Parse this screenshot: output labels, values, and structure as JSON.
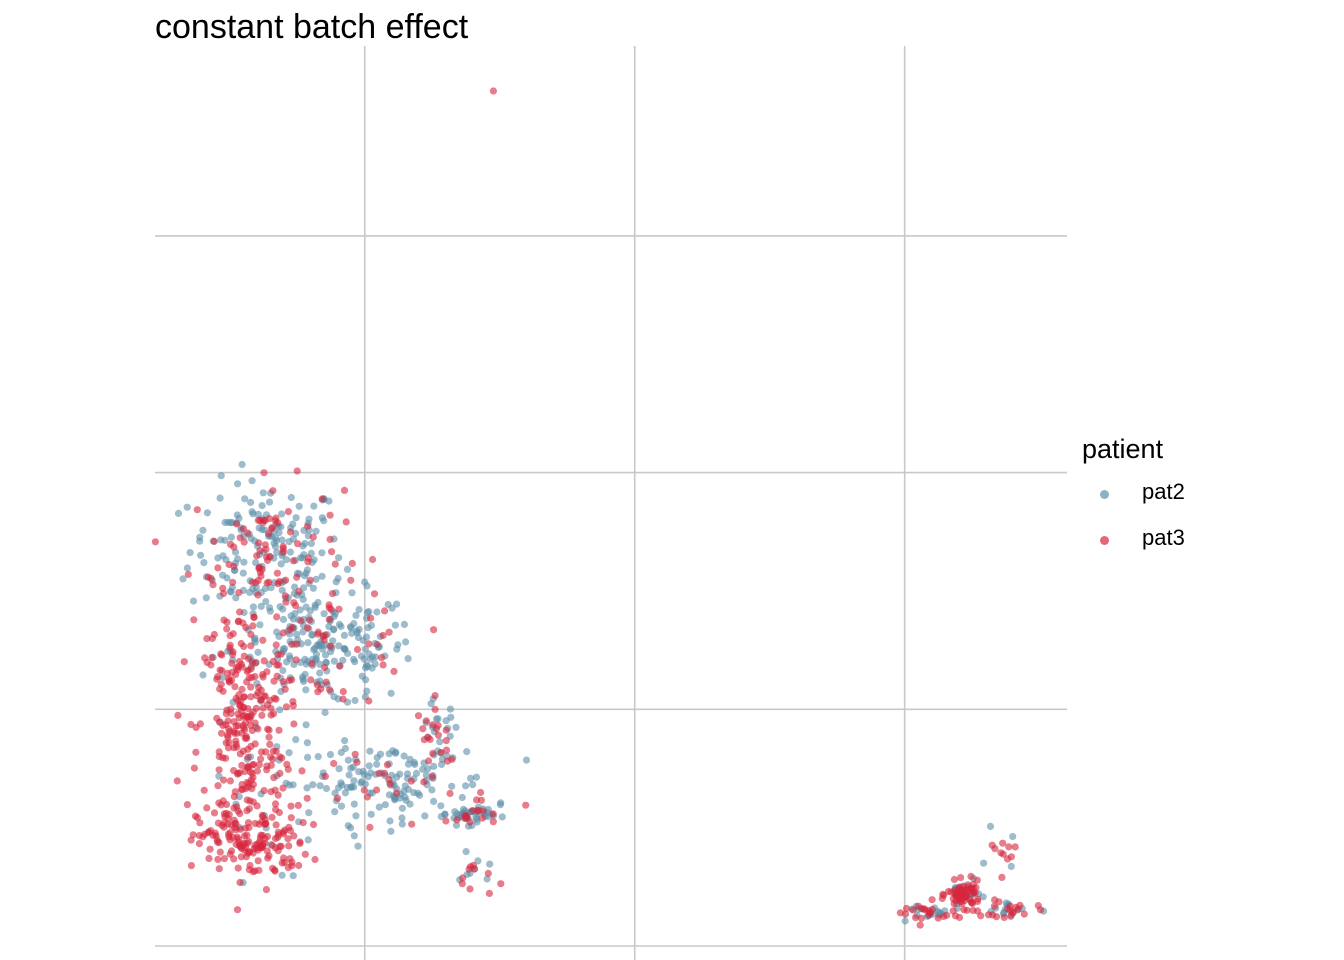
{
  "chart_data": {
    "type": "scatter",
    "title": "constant batch effect",
    "xlabel": "",
    "ylabel": "",
    "xlim": [
      0,
      1000
    ],
    "ylim": [
      0,
      1000
    ],
    "grid": true,
    "tick_labels_shown": false,
    "legend": {
      "title": "patient",
      "placement": "right"
    },
    "series": [
      {
        "name": "pat2",
        "color": "#5E8FA8",
        "points": []
      },
      {
        "name": "pat3",
        "color": "#D7263D",
        "points": []
      }
    ],
    "clusters": [
      {
        "id": "outlier",
        "x": 371,
        "y": 950,
        "sx": 0,
        "sy": 0,
        "n2": 0,
        "n3": 1
      },
      {
        "id": "main-top",
        "x": 122,
        "y": 440,
        "sx": 42,
        "sy": 38,
        "n2": 160,
        "n3": 90
      },
      {
        "id": "main-mid",
        "x": 185,
        "y": 330,
        "sx": 50,
        "sy": 32,
        "n2": 200,
        "n3": 60
      },
      {
        "id": "main-left",
        "x": 95,
        "y": 240,
        "sx": 24,
        "sy": 70,
        "n2": 10,
        "n3": 260
      },
      {
        "id": "main-bottom-left",
        "x": 107,
        "y": 115,
        "sx": 30,
        "sy": 20,
        "n2": 5,
        "n3": 140
      },
      {
        "id": "main-arm",
        "x": 250,
        "y": 180,
        "sx": 60,
        "sy": 22,
        "n2": 140,
        "n3": 30
      },
      {
        "id": "main-arm-tip",
        "x": 310,
        "y": 235,
        "sx": 12,
        "sy": 18,
        "n2": 20,
        "n3": 20
      },
      {
        "id": "small-1",
        "x": 345,
        "y": 145,
        "sx": 13,
        "sy": 5,
        "n2": 40,
        "n3": 14
      },
      {
        "id": "small-2",
        "x": 352,
        "y": 78,
        "sx": 10,
        "sy": 12,
        "n2": 8,
        "n3": 10
      },
      {
        "id": "right-core",
        "x": 887,
        "y": 57,
        "sx": 9,
        "sy": 7,
        "n2": 18,
        "n3": 70
      },
      {
        "id": "right-arm-1",
        "x": 846,
        "y": 36,
        "sx": 20,
        "sy": 6,
        "n2": 18,
        "n3": 24
      },
      {
        "id": "right-arm-2",
        "x": 938,
        "y": 40,
        "sx": 16,
        "sy": 6,
        "n2": 12,
        "n3": 20
      },
      {
        "id": "right-arm-3",
        "x": 928,
        "y": 103,
        "sx": 8,
        "sy": 12,
        "n2": 4,
        "n3": 10
      }
    ]
  },
  "legend": {
    "title": "patient",
    "items": [
      {
        "label": "pat2",
        "color": "#5E8FA8"
      },
      {
        "label": "pat3",
        "color": "#D7263D"
      }
    ]
  }
}
